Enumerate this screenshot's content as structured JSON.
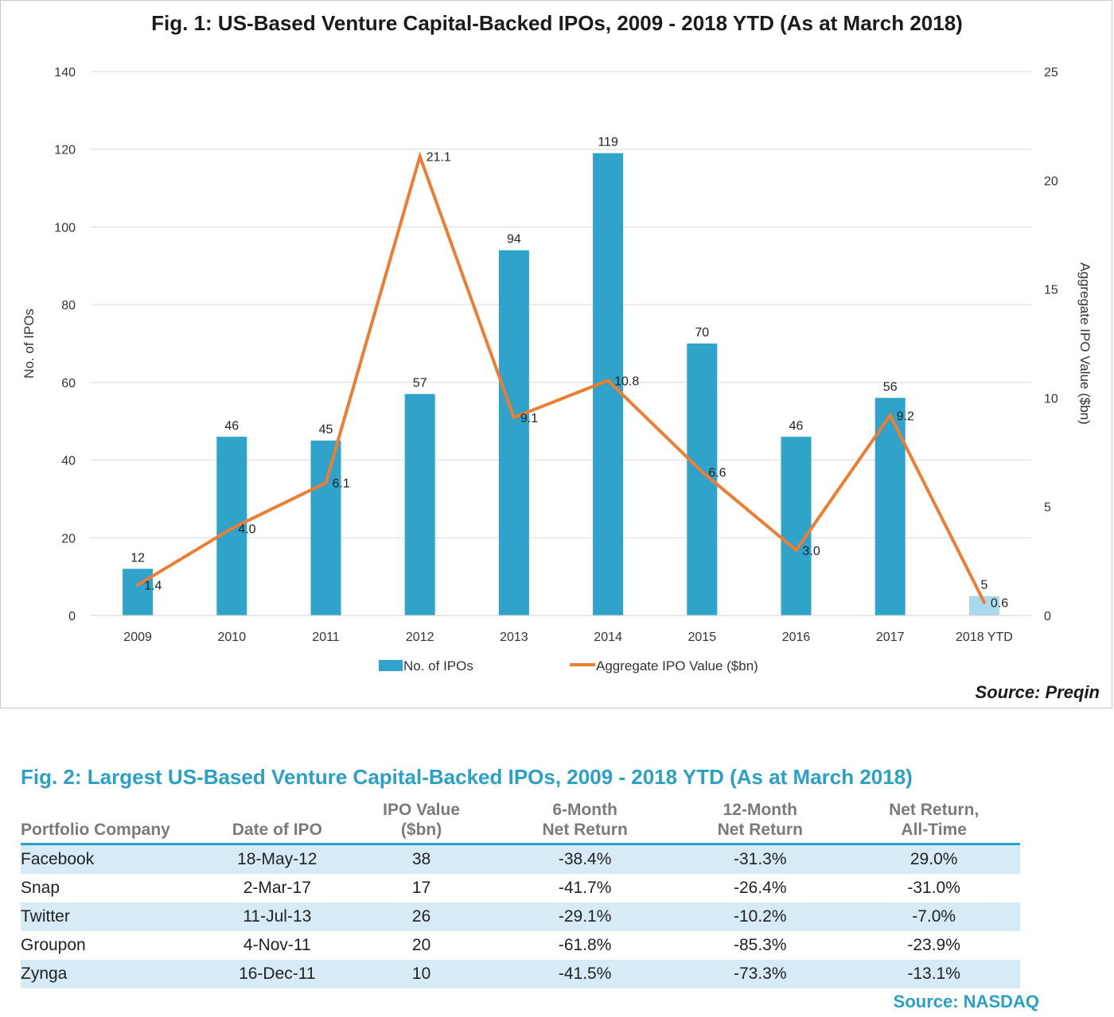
{
  "figure1": {
    "title": "Fig. 1: US-Based Venture Capital-Backed IPOs, 2009 - 2018 YTD (As at March 2018)",
    "source": "Source: Preqin"
  },
  "chart_data": {
    "type": "bar",
    "title": "Fig. 1: US-Based Venture Capital-Backed IPOs, 2009 - 2018 YTD (As at March 2018)",
    "categories": [
      "2009",
      "2010",
      "2011",
      "2012",
      "2013",
      "2014",
      "2015",
      "2016",
      "2017",
      "2018 YTD"
    ],
    "series": [
      {
        "name": "No. of IPOs",
        "type": "bar",
        "axis": "left",
        "color": "#2fa3c9",
        "values": [
          12,
          46,
          45,
          57,
          94,
          119,
          70,
          46,
          56,
          5
        ],
        "labels": [
          "12",
          "46",
          "45",
          "57",
          "94",
          "119",
          "70",
          "46",
          "56",
          "5"
        ]
      },
      {
        "name": "Aggregate IPO Value ($bn)",
        "type": "line",
        "axis": "right",
        "color": "#ed7d31",
        "values": [
          1.4,
          4.0,
          6.1,
          21.1,
          9.1,
          10.8,
          6.6,
          3.0,
          9.2,
          0.6
        ],
        "labels": [
          "1.4",
          "4.0",
          "6.1",
          "21.1",
          "9.1",
          "10.8",
          "6.6",
          "3.0",
          "9.2",
          "0.6"
        ]
      }
    ],
    "ylabel": "No. of IPOs",
    "y2label": "Aggregate IPO Value ($bn)",
    "ylim": [
      0,
      140
    ],
    "yticks": [
      0,
      20,
      40,
      60,
      80,
      100,
      120,
      140
    ],
    "y2lim": [
      0,
      25
    ],
    "y2ticks": [
      0,
      5,
      10,
      15,
      20,
      25
    ],
    "grid": true,
    "legend_position": "bottom"
  },
  "figure2": {
    "title": "Fig. 2:  Largest US-Based Venture Capital-Backed IPOs, 2009 - 2018 YTD (As at March 2018)",
    "source": "Source: NASDAQ",
    "columns": [
      {
        "line1": "Portfolio Company",
        "line2": ""
      },
      {
        "line1": "Date of IPO",
        "line2": ""
      },
      {
        "line1": "IPO Value",
        "line2": "($bn)"
      },
      {
        "line1": "6-Month",
        "line2": "Net Return"
      },
      {
        "line1": "12-Month",
        "line2": "Net Return"
      },
      {
        "line1": "Net Return,",
        "line2": "All-Time"
      }
    ],
    "rows": [
      [
        "Facebook",
        "18-May-12",
        "38",
        "-38.4%",
        "-31.3%",
        "29.0%"
      ],
      [
        "Snap",
        "2-Mar-17",
        "17",
        "-41.7%",
        "-26.4%",
        "-31.0%"
      ],
      [
        "Twitter",
        "11-Jul-13",
        "26",
        "-29.1%",
        "-10.2%",
        "-7.0%"
      ],
      [
        "Groupon",
        "4-Nov-11",
        "20",
        "-61.8%",
        "-85.3%",
        "-23.9%"
      ],
      [
        "Zynga",
        "16-Dec-11",
        "10",
        "-41.5%",
        "-73.3%",
        "-13.1%"
      ]
    ]
  }
}
